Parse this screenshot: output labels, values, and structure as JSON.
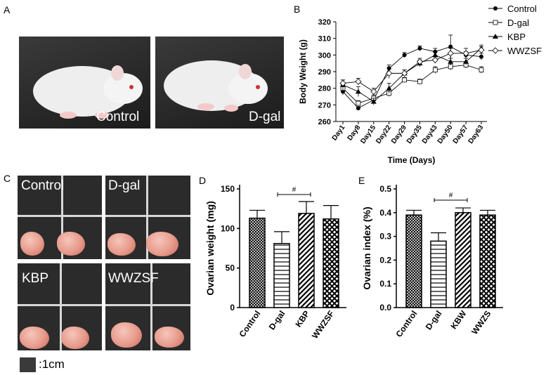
{
  "panels": {
    "a": {
      "letter": "A",
      "captions": [
        "Control",
        "D-gal"
      ]
    },
    "b": {
      "letter": "B"
    },
    "c": {
      "letter": "C",
      "labels": [
        "Control",
        "D-gal",
        "KBP",
        "WWZSF"
      ],
      "scale_label": ":1cm"
    },
    "d": {
      "letter": "D"
    },
    "e": {
      "letter": "E"
    }
  },
  "chart_data": [
    {
      "type": "line",
      "panel": "B",
      "ylabel": "Body Weight (g)",
      "xlabel": "Time (Days)",
      "ylim": [
        260,
        320
      ],
      "yticks": [
        260,
        270,
        280,
        290,
        300,
        310,
        320
      ],
      "categories": [
        "Day1",
        "Day8",
        "Day15",
        "Day22",
        "Day29",
        "Day35",
        "Day43",
        "Day50",
        "Day57",
        "Day63"
      ],
      "legend_position": "top-right",
      "series": [
        {
          "name": "Control",
          "marker": "filled-circle",
          "values": [
            278,
            268,
            273,
            292,
            300,
            304,
            302,
            305,
            300,
            299
          ],
          "errors": [
            2,
            1,
            2,
            2,
            1.5,
            1.5,
            2,
            7,
            2,
            2
          ]
        },
        {
          "name": "D-gal",
          "marker": "open-square",
          "values": [
            280,
            271,
            274,
            277,
            285,
            284,
            291,
            293,
            294,
            291
          ],
          "errors": [
            2,
            1.5,
            2,
            2,
            1.5,
            1.5,
            2,
            2,
            2,
            2
          ]
        },
        {
          "name": "KBP",
          "marker": "filled-triangle",
          "values": [
            282,
            278,
            272,
            280,
            289,
            295,
            300,
            296,
            296,
            304
          ],
          "errors": [
            3,
            3,
            2,
            3,
            2,
            2,
            2,
            2,
            2,
            2
          ]
        },
        {
          "name": "WWZSF",
          "marker": "open-diamond",
          "values": [
            283,
            284,
            278,
            289,
            289,
            296,
            297,
            301,
            301,
            303
          ],
          "errors": [
            2,
            2,
            2,
            3,
            2,
            2,
            2,
            3,
            3,
            2
          ]
        }
      ]
    },
    {
      "type": "bar",
      "panel": "D",
      "ylabel": "Ovarian weight (mg)",
      "ylim": [
        0,
        150
      ],
      "yticks": [
        0,
        50,
        100,
        150
      ],
      "categories": [
        "Control",
        "D-gal",
        "KBP",
        "WWZSF"
      ],
      "values": [
        113,
        81,
        119,
        112
      ],
      "errors": [
        10,
        15,
        15,
        17
      ],
      "patterns": [
        "crosshatch-fine",
        "horizontal",
        "diagonal",
        "crosshatch-bold"
      ],
      "annotation": {
        "text": "#",
        "from": "D-gal",
        "to": "KBP"
      }
    },
    {
      "type": "bar",
      "panel": "E",
      "ylabel": "Ovarian index (%)",
      "ylim": [
        0,
        0.5
      ],
      "yticks": [
        "0.0",
        "0.1",
        "0.2",
        "0.3",
        "0.4",
        "0.5"
      ],
      "categories": [
        "Control",
        "D-gal",
        "KBW",
        "WWZS"
      ],
      "values": [
        0.39,
        0.28,
        0.4,
        0.39
      ],
      "errors": [
        0.02,
        0.035,
        0.02,
        0.02
      ],
      "patterns": [
        "crosshatch-fine",
        "horizontal",
        "diagonal",
        "crosshatch-bold"
      ],
      "annotation": {
        "text": "#",
        "from": "D-gal",
        "to": "KBW"
      }
    }
  ]
}
